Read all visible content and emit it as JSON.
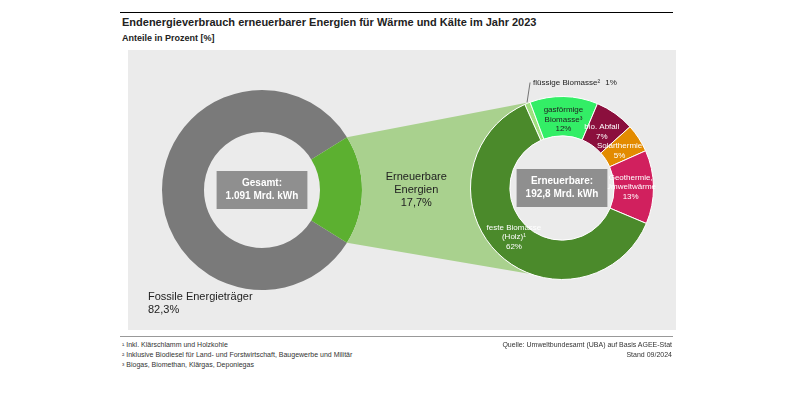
{
  "title": "Endenergieverbrauch erneuerbarer Energien für Wärme und Kälte im Jahr 2023",
  "subtitle": "Anteile in Prozent [%]",
  "chart_data": [
    {
      "type": "doughnut",
      "center_label": [
        "Gesamt:",
        "1.091 Mrd. kWh"
      ],
      "categories": [
        "Fossile Energieträger",
        "Erneuerbare Energien"
      ],
      "values": [
        82.3,
        17.7
      ],
      "value_labels": [
        "82,3%",
        "17,7%"
      ],
      "colors": [
        "#7a7a7a",
        "#5cb030"
      ],
      "data_labels": true
    },
    {
      "type": "doughnut",
      "center_label": [
        "Erneuerbare:",
        "192,8 Mrd. kWh"
      ],
      "categories": [
        "flüssige Biomasse²",
        "gasförmige Biomasse³",
        "bio. Abfall",
        "Solarthermie",
        "Geothermie, Umweltwärme",
        "feste Biomasse (Holz)¹"
      ],
      "values": [
        1,
        12,
        7,
        5,
        13,
        62
      ],
      "value_labels": [
        "1%",
        "12%",
        "7%",
        "5%",
        "13%",
        "62%"
      ],
      "colors": [
        "#9fe07f",
        "#33ee66",
        "#8b0f3d",
        "#e38b00",
        "#d1205e",
        "#4b8a2b"
      ],
      "data_labels": true
    }
  ],
  "footnotes": [
    "¹ Inkl. Klärschlamm und Holzkohle",
    "² Inklusive Biodiesel für Land- und Forstwirtschaft, Baugewerbe und Militär",
    "³ Biogas, Biomethan, Klärgas, Deponiegas"
  ],
  "source": "Quelle: Umweltbundesamt (UBA) auf Basis AGEE-Stat",
  "date": "Stand 09/2024"
}
